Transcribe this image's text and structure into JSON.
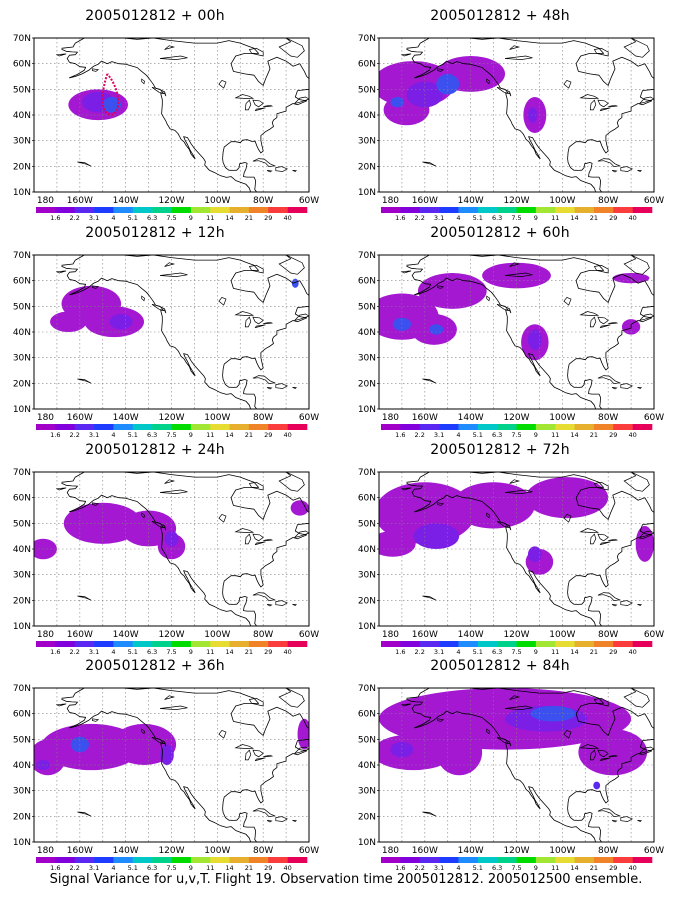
{
  "panels": [
    {
      "title": "2005012812 + 00h",
      "blobs": [
        {
          "cx": -152,
          "cy": 44,
          "rx": 13,
          "ry": 6,
          "level": 1
        },
        {
          "cx": -152,
          "cy": 45,
          "rx": 7,
          "ry": 4,
          "level": 2
        },
        {
          "cx": -146,
          "cy": 44,
          "rx": 4,
          "ry": 3,
          "level": 3
        }
      ],
      "contour": {
        "tip": [
          -148,
          56
        ],
        "base_left": [
          -150,
          41
        ],
        "base_right": [
          -143,
          41
        ]
      }
    },
    {
      "title": "2005012812 + 48h",
      "blobs": [
        {
          "cx": -165,
          "cy": 52,
          "rx": 18,
          "ry": 9,
          "level": 1
        },
        {
          "cx": -140,
          "cy": 56,
          "rx": 15,
          "ry": 7,
          "level": 1
        },
        {
          "cx": -168,
          "cy": 42,
          "rx": 10,
          "ry": 6,
          "level": 1
        },
        {
          "cx": -112,
          "cy": 40,
          "rx": 5,
          "ry": 7,
          "level": 1
        },
        {
          "cx": -160,
          "cy": 48,
          "rx": 8,
          "ry": 5,
          "level": 2
        },
        {
          "cx": -150,
          "cy": 52,
          "rx": 5,
          "ry": 4,
          "level": 3
        },
        {
          "cx": -172,
          "cy": 45,
          "rx": 3,
          "ry": 2,
          "level": 3
        },
        {
          "cx": -113,
          "cy": 40,
          "rx": 2,
          "ry": 3,
          "level": 2
        }
      ]
    },
    {
      "title": "2005012812 + 12h",
      "blobs": [
        {
          "cx": -155,
          "cy": 51,
          "rx": 13,
          "ry": 7,
          "level": 1
        },
        {
          "cx": -145,
          "cy": 44,
          "rx": 13,
          "ry": 6,
          "level": 1
        },
        {
          "cx": -165,
          "cy": 44,
          "rx": 8,
          "ry": 4,
          "level": 1
        },
        {
          "cx": -142,
          "cy": 44,
          "rx": 5,
          "ry": 3,
          "level": 2
        },
        {
          "cx": -66,
          "cy": 59,
          "rx": 1.5,
          "ry": 1.8,
          "level": 3
        }
      ]
    },
    {
      "title": "2005012812 + 60h",
      "blobs": [
        {
          "cx": -170,
          "cy": 46,
          "rx": 16,
          "ry": 9,
          "level": 1
        },
        {
          "cx": -148,
          "cy": 56,
          "rx": 15,
          "ry": 7,
          "level": 1
        },
        {
          "cx": -120,
          "cy": 62,
          "rx": 15,
          "ry": 5,
          "level": 1
        },
        {
          "cx": -156,
          "cy": 41,
          "rx": 10,
          "ry": 6,
          "level": 1
        },
        {
          "cx": -112,
          "cy": 36,
          "rx": 6,
          "ry": 7,
          "level": 1
        },
        {
          "cx": -70,
          "cy": 42,
          "rx": 4,
          "ry": 3,
          "level": 1
        },
        {
          "cx": -70,
          "cy": 61,
          "rx": 8,
          "ry": 2,
          "level": 1
        },
        {
          "cx": -170,
          "cy": 43,
          "rx": 4,
          "ry": 2.5,
          "level": 3
        },
        {
          "cx": -155,
          "cy": 41,
          "rx": 3,
          "ry": 2,
          "level": 3
        },
        {
          "cx": -112,
          "cy": 37,
          "rx": 3,
          "ry": 4,
          "level": 2
        }
      ]
    },
    {
      "title": "2005012812 + 24h",
      "blobs": [
        {
          "cx": -150,
          "cy": 50,
          "rx": 17,
          "ry": 8,
          "level": 1
        },
        {
          "cx": -130,
          "cy": 48,
          "rx": 12,
          "ry": 7,
          "level": 1
        },
        {
          "cx": -120,
          "cy": 41,
          "rx": 6,
          "ry": 5,
          "level": 1
        },
        {
          "cx": -176,
          "cy": 40,
          "rx": 6,
          "ry": 4,
          "level": 1
        },
        {
          "cx": -64,
          "cy": 56,
          "rx": 4,
          "ry": 3,
          "level": 1
        },
        {
          "cx": -120,
          "cy": 44,
          "rx": 3,
          "ry": 3,
          "level": 2
        }
      ]
    },
    {
      "title": "2005012812 + 72h",
      "blobs": [
        {
          "cx": -160,
          "cy": 54,
          "rx": 22,
          "ry": 12,
          "level": 1
        },
        {
          "cx": -130,
          "cy": 57,
          "rx": 18,
          "ry": 9,
          "level": 1
        },
        {
          "cx": -98,
          "cy": 60,
          "rx": 18,
          "ry": 8,
          "level": 1
        },
        {
          "cx": -174,
          "cy": 42,
          "rx": 10,
          "ry": 5,
          "level": 1
        },
        {
          "cx": -110,
          "cy": 35,
          "rx": 6,
          "ry": 5,
          "level": 1
        },
        {
          "cx": -64,
          "cy": 42,
          "rx": 4,
          "ry": 7,
          "level": 1
        },
        {
          "cx": -155,
          "cy": 45,
          "rx": 10,
          "ry": 5,
          "level": 2
        },
        {
          "cx": -112,
          "cy": 38,
          "rx": 3,
          "ry": 3,
          "level": 2
        }
      ]
    },
    {
      "title": "2005012812 + 36h",
      "blobs": [
        {
          "cx": -155,
          "cy": 47,
          "rx": 22,
          "ry": 9,
          "level": 1
        },
        {
          "cx": -132,
          "cy": 48,
          "rx": 14,
          "ry": 8,
          "level": 1
        },
        {
          "cx": -174,
          "cy": 43,
          "rx": 8,
          "ry": 7,
          "level": 1
        },
        {
          "cx": -62,
          "cy": 52,
          "rx": 3,
          "ry": 6,
          "level": 1
        },
        {
          "cx": -160,
          "cy": 48,
          "rx": 4,
          "ry": 3,
          "level": 3
        },
        {
          "cx": -176,
          "cy": 40,
          "rx": 3,
          "ry": 2,
          "level": 2
        },
        {
          "cx": -122,
          "cy": 44,
          "rx": 3,
          "ry": 4,
          "level": 2
        }
      ]
    },
    {
      "title": "2005012812 + 84h",
      "blobs": [
        {
          "cx": -125,
          "cy": 58,
          "rx": 55,
          "ry": 12,
          "level": 1
        },
        {
          "cx": -165,
          "cy": 45,
          "rx": 18,
          "ry": 7,
          "level": 1
        },
        {
          "cx": -145,
          "cy": 45,
          "rx": 10,
          "ry": 9,
          "level": 1
        },
        {
          "cx": -78,
          "cy": 45,
          "rx": 15,
          "ry": 9,
          "level": 1
        },
        {
          "cx": -107,
          "cy": 58,
          "rx": 18,
          "ry": 5,
          "level": 2
        },
        {
          "cx": -104,
          "cy": 60,
          "rx": 10,
          "ry": 3,
          "level": 3
        },
        {
          "cx": -170,
          "cy": 46,
          "rx": 5,
          "ry": 3,
          "level": 2
        },
        {
          "cx": -85,
          "cy": 32,
          "rx": 1.5,
          "ry": 1.5,
          "level": 4
        }
      ]
    }
  ],
  "axes": {
    "lat_ticks": [
      "10N",
      "20N",
      "30N",
      "40N",
      "50N",
      "60N",
      "70N"
    ],
    "lon_ticks": [
      "180",
      "160W",
      "140W",
      "120W",
      "100W",
      "80W",
      "60W"
    ]
  },
  "colorbar": {
    "labels": [
      "1.6",
      "2.2",
      "3.1",
      "4",
      "5.1",
      "6.3",
      "7.5",
      "9",
      "11",
      "14",
      "21",
      "29",
      "40"
    ],
    "colors": [
      "#a000c8",
      "#8200dc",
      "#5a28f0",
      "#1e3cff",
      "#1e8cff",
      "#00c8c8",
      "#00d28c",
      "#00dc00",
      "#a0e632",
      "#e6dc32",
      "#e6af2d",
      "#f08228",
      "#fa3c3c",
      "#e6005a"
    ]
  },
  "colors": {
    "fill_level_1": "#a418d2",
    "fill_level_2": "#7b1ee6",
    "fill_level_3": "#3c50f0",
    "fill_level_4": "#5a28f0",
    "contour": "#e0005a",
    "coast": "#000000",
    "grid": "#808080"
  },
  "footer": "Signal Variance for u,v,T. Flight 19. Observation time 2005012812. 2005012500 ensemble."
}
